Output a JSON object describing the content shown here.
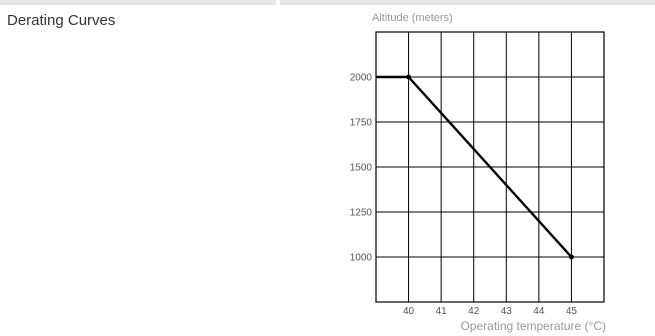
{
  "section": {
    "title": "Derating Curves"
  },
  "chart_data": {
    "type": "line",
    "title": "",
    "ylabel": "Altitude (meters)",
    "xlabel": "Operating temperature (°C)",
    "x_ticks": [
      40,
      41,
      42,
      43,
      44,
      45
    ],
    "y_ticks": [
      1000,
      1250,
      1500,
      1750,
      2000
    ],
    "xlim": [
      39,
      46
    ],
    "ylim": [
      750,
      2250
    ],
    "grid": true,
    "series": [
      {
        "x": [
          39,
          40,
          45
        ],
        "y": [
          2000,
          2000,
          1000
        ],
        "markers": [
          [
            40,
            2000
          ],
          [
            45,
            1000
          ]
        ]
      }
    ]
  }
}
